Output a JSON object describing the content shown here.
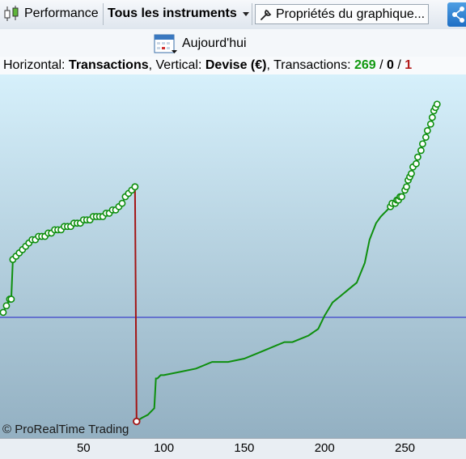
{
  "toolbar": {
    "performance_label": "Performance",
    "instruments_label": "Tous les instruments",
    "properties_label": "Propriétés du graphique...",
    "today_label": "Aujourd'hui"
  },
  "info": {
    "h_label": "Horizontal: ",
    "h_value": "Transactions",
    "v_label": ", Vertical: ",
    "v_value": "Devise (€)",
    "t_label": ", Transactions: ",
    "t_total": "269",
    "sep1": " / ",
    "t_zero": "0",
    "sep2": " / ",
    "t_loss": "1"
  },
  "copyright": "© ProRealTime Trading",
  "colors": {
    "equity": "#0e8f0e",
    "loss": "#a31515",
    "baseline": "#2020c8",
    "bg_top": "#d3eefa",
    "bg_bottom": "#94b1c4"
  },
  "chart_data": {
    "type": "line",
    "xlabel": "",
    "ylabel": "",
    "xlim": [
      -2,
      288
    ],
    "ylim": [
      -5,
      105
    ],
    "xticks": [
      50,
      100,
      150,
      200,
      250
    ],
    "baseline_y": 31.5,
    "note_y": "vertical axis unlabeled on screen; y values are relative equity levels on a 0–100 scale",
    "series": [
      {
        "x": [
          0,
          2,
          4,
          5,
          6,
          8,
          10,
          12,
          14,
          16,
          18,
          20,
          22,
          24,
          26,
          28,
          30,
          32,
          34,
          36,
          38,
          40,
          42,
          44,
          46,
          48,
          50,
          52,
          54,
          56,
          58,
          60,
          62,
          64,
          66,
          68,
          70,
          72,
          74,
          76,
          78,
          80,
          82,
          82,
          83,
          86,
          90,
          94,
          95,
          96,
          98,
          100,
          110,
          120,
          130,
          140,
          150,
          160,
          170,
          175,
          180,
          190,
          196,
          200,
          205,
          210,
          215,
          220,
          225,
          228,
          232,
          235,
          237,
          239,
          241,
          242,
          244,
          245,
          246,
          247,
          248,
          250,
          251,
          252,
          253,
          254,
          255,
          257,
          258,
          260,
          261,
          263,
          264,
          266,
          267,
          268,
          269,
          270
        ],
        "y": [
          33,
          35,
          37,
          37,
          49,
          50,
          51,
          52,
          53,
          54,
          55,
          55,
          56,
          56,
          56,
          57,
          57,
          58,
          58,
          58,
          59,
          59,
          59,
          60,
          60,
          60,
          61,
          61,
          61,
          62,
          62,
          62,
          62,
          63,
          63,
          64,
          64,
          65,
          66,
          68,
          69,
          70,
          71,
          71,
          0,
          1,
          2,
          4,
          13,
          13,
          14,
          14,
          15,
          16,
          18,
          18,
          19,
          21,
          23,
          24,
          24,
          26,
          28,
          32,
          36,
          38,
          40,
          42,
          48,
          55,
          60,
          62,
          63,
          64,
          65,
          66,
          66,
          67,
          67,
          68,
          68,
          70,
          71,
          73,
          74,
          75,
          77,
          78,
          80,
          82,
          84,
          86,
          88,
          90,
          92,
          94,
          95,
          96
        ]
      }
    ]
  }
}
